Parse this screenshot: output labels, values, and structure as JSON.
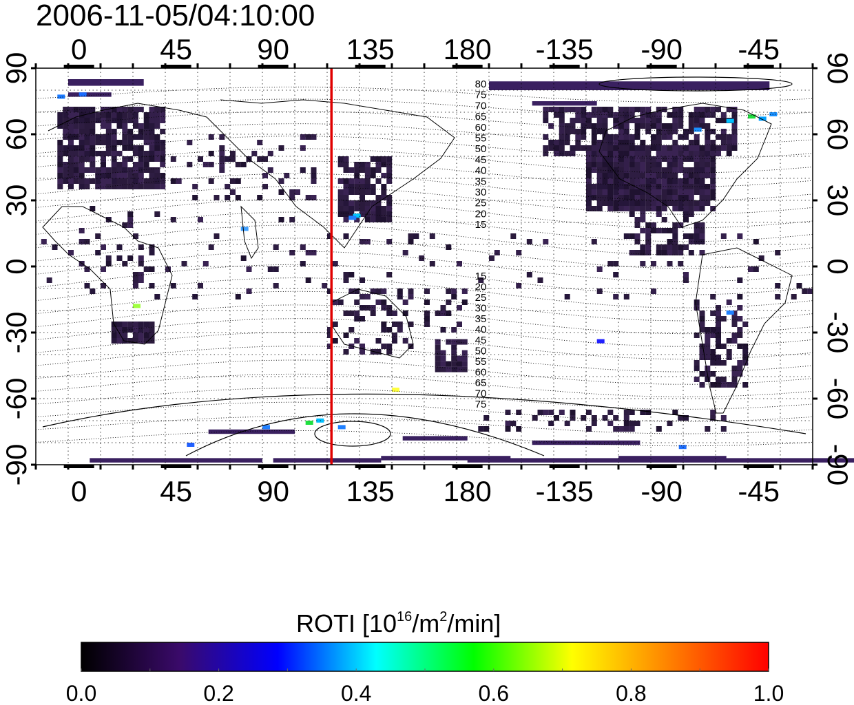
{
  "title": "2006-11-05/04:10:00",
  "map": {
    "top_axis_labels": [
      "0",
      "45",
      "90",
      "135",
      "180",
      "-135",
      "-90",
      "-45"
    ],
    "bottom_axis_labels": [
      "0",
      "45",
      "90",
      "135",
      "180",
      "-135",
      "-90",
      "-45"
    ],
    "left_axis_labels": [
      "90",
      "60",
      "30",
      "0",
      "-30",
      "-60",
      "-90"
    ],
    "right_axis_labels": [
      "90",
      "60",
      "30",
      "0",
      "-30",
      "-60",
      "-90"
    ],
    "magnetic_contour_labels_north": [
      "80",
      "75",
      "70",
      "65",
      "60",
      "55",
      "50",
      "45",
      "40",
      "35",
      "30",
      "25",
      "20",
      "15"
    ],
    "magnetic_contour_labels_south": [
      "15",
      "20",
      "25",
      "30",
      "35",
      "40",
      "45",
      "50",
      "55",
      "60",
      "65",
      "70",
      "75"
    ],
    "terminator_longitude": 117,
    "terminator_color": "#e00000",
    "no_data_color": "#ffffff",
    "background_roti_color": "#2a1a3c"
  },
  "colorbar": {
    "label_prefix": "ROTI  [10",
    "label_sup1": "16",
    "label_mid": "/m",
    "label_sup2": "2",
    "label_suffix": "/min]",
    "ticks": [
      "0.0",
      "0.2",
      "0.4",
      "0.6",
      "0.8",
      "1.0"
    ],
    "range": [
      0.0,
      1.0
    ],
    "stops": [
      "#000000",
      "#3a0a6a",
      "#0000ff",
      "#00ffff",
      "#00ff00",
      "#ffff00",
      "#ff8000",
      "#ff0000"
    ]
  }
}
